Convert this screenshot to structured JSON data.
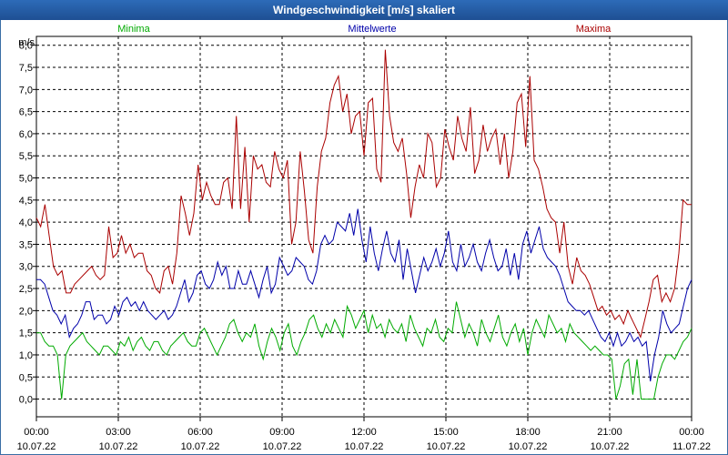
{
  "window": {
    "title": "Windgeschwindigkeit [m/s] skaliert"
  },
  "chart_data": {
    "type": "line",
    "title": "Windgeschwindigkeit [m/s] skaliert",
    "ylabel": "m/s",
    "xlabel": "",
    "ylim": [
      -0.4,
      8.2
    ],
    "xlim": [
      0,
      24
    ],
    "grid": true,
    "yticks": [
      "0,0",
      "0,5",
      "1,0",
      "1,5",
      "2,0",
      "2,5",
      "3,0",
      "3,5",
      "4,0",
      "4,5",
      "5,0",
      "5,5",
      "6,0",
      "6,5",
      "7,0",
      "7,5",
      "8,0"
    ],
    "xticks": [
      {
        "time": "00:00",
        "date": "10.07.22"
      },
      {
        "time": "03:00",
        "date": "10.07.22"
      },
      {
        "time": "06:00",
        "date": "10.07.22"
      },
      {
        "time": "09:00",
        "date": "10.07.22"
      },
      {
        "time": "12:00",
        "date": "10.07.22"
      },
      {
        "time": "15:00",
        "date": "10.07.22"
      },
      {
        "time": "18:00",
        "date": "10.07.22"
      },
      {
        "time": "21:00",
        "date": "10.07.22"
      },
      {
        "time": "00:00",
        "date": "11.07.22"
      }
    ],
    "series": [
      {
        "name": "Minima",
        "color": "#00aa00",
        "legend_pos": "left",
        "values": [
          1.5,
          1.5,
          1.3,
          1.2,
          1.2,
          1.0,
          0.0,
          1.0,
          1.2,
          1.3,
          1.4,
          1.5,
          1.3,
          1.2,
          1.1,
          1.0,
          1.2,
          1.2,
          1.1,
          1.0,
          1.3,
          1.2,
          1.4,
          1.1,
          1.3,
          1.4,
          1.2,
          1.1,
          1.3,
          1.3,
          1.1,
          1.0,
          1.2,
          1.3,
          1.4,
          1.5,
          1.3,
          1.2,
          1.2,
          1.5,
          1.6,
          1.4,
          1.2,
          1.0,
          1.2,
          1.4,
          1.7,
          1.8,
          1.5,
          1.3,
          1.5,
          1.4,
          1.7,
          1.2,
          0.9,
          1.3,
          1.6,
          1.4,
          1.1,
          1.5,
          1.7,
          1.2,
          1.0,
          1.3,
          1.5,
          1.8,
          1.9,
          1.6,
          1.4,
          1.7,
          1.5,
          1.8,
          1.6,
          1.4,
          2.1,
          1.9,
          1.6,
          1.8,
          2.0,
          1.5,
          1.9,
          1.6,
          1.7,
          1.4,
          1.8,
          1.6,
          1.5,
          1.7,
          1.3,
          1.9,
          1.6,
          1.4,
          1.2,
          1.6,
          1.5,
          1.8,
          1.4,
          1.3,
          1.6,
          1.5,
          2.2,
          1.8,
          1.4,
          1.7,
          1.5,
          1.2,
          1.8,
          1.5,
          1.3,
          1.6,
          1.9,
          1.4,
          1.2,
          1.5,
          1.7,
          1.3,
          1.6,
          1.0,
          1.5,
          1.8,
          1.6,
          1.4,
          1.9,
          1.7,
          1.5,
          1.6,
          1.3,
          1.7,
          1.5,
          1.4,
          1.3,
          1.2,
          1.1,
          1.2,
          1.1,
          1.0,
          1.0,
          0.9,
          0.0,
          0.3,
          0.8,
          0.9,
          0.1,
          0.9,
          0.0,
          0.0,
          0.0,
          0.0,
          0.5,
          0.8,
          1.0,
          1.0,
          0.9,
          1.1,
          1.3,
          1.4,
          1.6
        ]
      },
      {
        "name": "Mittelwerte",
        "color": "#0000aa",
        "legend_pos": "center",
        "values": [
          2.7,
          2.7,
          2.6,
          2.3,
          2.0,
          1.9,
          1.7,
          1.9,
          1.4,
          1.6,
          1.7,
          1.9,
          2.2,
          2.2,
          1.8,
          1.9,
          1.9,
          1.7,
          1.8,
          2.1,
          1.9,
          2.2,
          2.3,
          2.1,
          2.2,
          2.0,
          2.2,
          2.0,
          1.9,
          1.8,
          1.9,
          2.0,
          1.8,
          1.9,
          2.1,
          2.4,
          2.7,
          2.2,
          2.4,
          2.8,
          2.9,
          2.6,
          2.5,
          2.7,
          3.1,
          2.8,
          3.0,
          2.5,
          2.5,
          2.9,
          2.6,
          2.6,
          2.9,
          2.6,
          2.3,
          2.7,
          3.0,
          2.4,
          2.6,
          3.2,
          3.0,
          2.8,
          2.9,
          3.2,
          3.1,
          3.0,
          2.7,
          2.6,
          2.9,
          3.5,
          3.7,
          3.5,
          3.6,
          4.0,
          3.9,
          3.8,
          4.2,
          3.7,
          4.3,
          3.6,
          3.1,
          3.9,
          3.3,
          2.9,
          3.4,
          3.8,
          3.3,
          3.1,
          3.6,
          2.7,
          3.4,
          2.9,
          2.4,
          2.8,
          3.2,
          2.9,
          3.1,
          3.4,
          3.0,
          3.3,
          3.8,
          3.1,
          2.9,
          3.5,
          3.0,
          3.2,
          3.5,
          3.1,
          2.9,
          3.3,
          3.6,
          3.2,
          2.9,
          3.0,
          3.4,
          2.8,
          3.3,
          2.7,
          3.5,
          3.8,
          3.3,
          3.6,
          3.9,
          3.4,
          3.2,
          3.1,
          3.0,
          2.8,
          2.5,
          2.2,
          2.1,
          2.0,
          2.0,
          1.9,
          2.0,
          1.8,
          1.6,
          1.4,
          1.3,
          1.5,
          1.2,
          1.5,
          1.2,
          1.3,
          1.5,
          1.3,
          1.4,
          1.2,
          1.3,
          0.4,
          1.0,
          1.4,
          2.0,
          1.7,
          1.5,
          1.6,
          1.7,
          2.1,
          2.5,
          2.7
        ]
      },
      {
        "name": "Maxima",
        "color": "#aa0000",
        "legend_pos": "right",
        "values": [
          4.1,
          3.9,
          4.4,
          3.7,
          3.0,
          2.8,
          2.9,
          2.4,
          2.4,
          2.6,
          2.7,
          2.8,
          2.9,
          3.0,
          2.8,
          2.7,
          2.8,
          3.9,
          3.2,
          3.3,
          3.7,
          3.3,
          3.5,
          3.2,
          3.3,
          3.3,
          2.9,
          2.8,
          2.5,
          2.4,
          2.9,
          3.0,
          2.6,
          3.3,
          4.6,
          4.2,
          3.7,
          4.2,
          5.3,
          4.5,
          4.9,
          4.6,
          4.4,
          4.4,
          4.9,
          5.0,
          4.3,
          6.4,
          4.3,
          5.7,
          4.0,
          5.5,
          5.2,
          5.3,
          4.9,
          4.8,
          5.6,
          5.2,
          5.0,
          5.4,
          3.5,
          4.0,
          5.6,
          4.7,
          3.6,
          3.3,
          4.8,
          5.6,
          5.9,
          6.7,
          7.1,
          7.3,
          6.5,
          6.9,
          6.0,
          6.4,
          6.5,
          5.5,
          6.7,
          6.8,
          5.2,
          4.9,
          7.9,
          6.4,
          5.8,
          5.6,
          5.9,
          5.1,
          4.1,
          4.8,
          5.3,
          5.0,
          6.0,
          5.8,
          4.8,
          5.0,
          6.1,
          5.7,
          5.4,
          6.4,
          5.9,
          5.6,
          6.6,
          5.1,
          5.4,
          6.2,
          5.6,
          5.9,
          6.1,
          5.3,
          6.0,
          5.0,
          5.6,
          6.7,
          6.9,
          5.7,
          7.3,
          5.4,
          5.2,
          4.8,
          4.3,
          4.1,
          4.0,
          3.3,
          4.0,
          3.0,
          2.6,
          3.2,
          2.9,
          2.8,
          2.6,
          2.3,
          2.0,
          2.1,
          1.9,
          2.0,
          1.8,
          1.9,
          1.7,
          2.0,
          1.8,
          1.6,
          1.4,
          1.8,
          2.2,
          2.7,
          2.8,
          2.2,
          2.4,
          2.2,
          2.5,
          3.3,
          4.5,
          4.4,
          4.4
        ]
      }
    ]
  }
}
